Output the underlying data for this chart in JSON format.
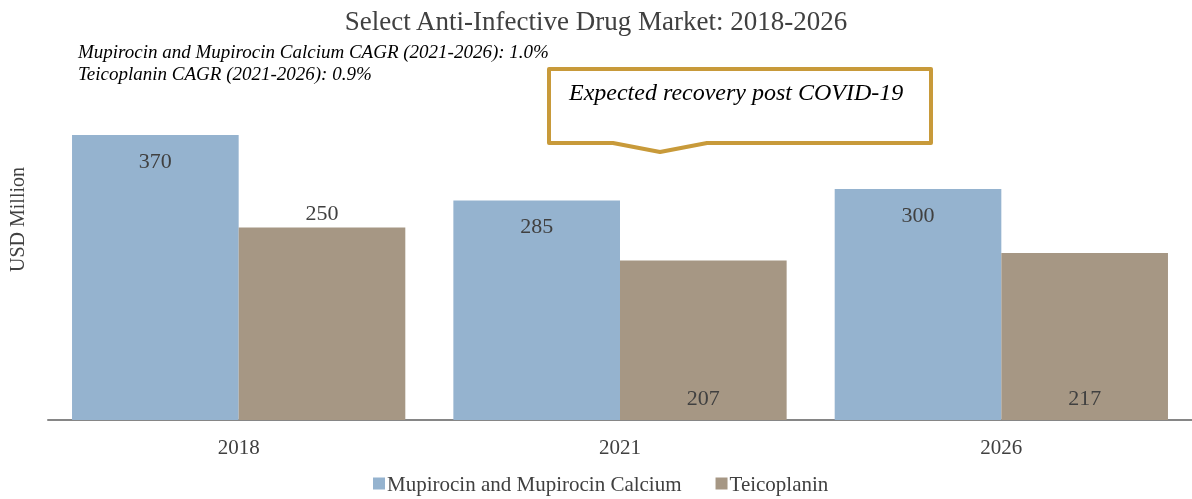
{
  "chart_data": {
    "type": "bar",
    "title": "Select Anti-Infective Drug Market: 2018-2026",
    "ylabel": "USD Million",
    "annotations": [
      "Mupirocin and Mupirocin Calcium CAGR (2021-2026): 1.0%",
      "Teicoplanin CAGR (2021-2026): 0.9%",
      "Expected recovery post COVID-19"
    ],
    "categories": [
      "2018",
      "2021",
      "2026"
    ],
    "series": [
      {
        "name": "Mupirocin and Mupirocin Calcium",
        "color": "#95b3cf",
        "values": [
          370,
          285,
          300
        ]
      },
      {
        "name": "Teicoplanin",
        "color": "#a69784",
        "values": [
          250,
          207,
          217
        ]
      }
    ],
    "data_labels": true,
    "legend": "bottom",
    "tick_labels": "x",
    "grid": false
  }
}
